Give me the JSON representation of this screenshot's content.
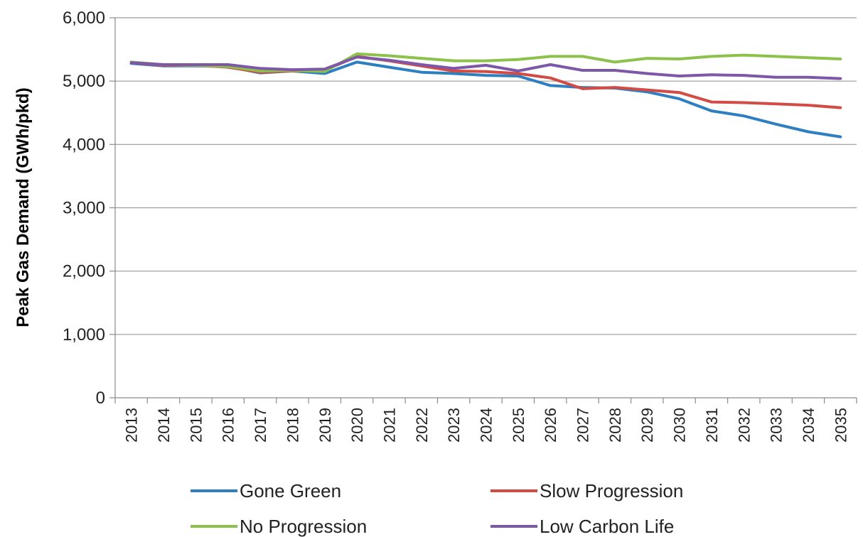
{
  "chart_data": {
    "type": "line",
    "title": "",
    "xlabel": "",
    "ylabel": "Peak Gas Demand (GWh/pkd)",
    "ylim": [
      0,
      6000
    ],
    "yticks": [
      0,
      1000,
      2000,
      3000,
      4000,
      5000,
      6000
    ],
    "ytick_labels": [
      "0",
      "1,000",
      "2,000",
      "3,000",
      "4,000",
      "5,000",
      "6,000"
    ],
    "grid": "horizontal",
    "legend_position": "bottom",
    "categories": [
      "2013",
      "2014",
      "2015",
      "2016",
      "2017",
      "2018",
      "2019",
      "2020",
      "2021",
      "2022",
      "2023",
      "2024",
      "2025",
      "2026",
      "2027",
      "2028",
      "2029",
      "2030",
      "2031",
      "2032",
      "2033",
      "2034",
      "2035"
    ],
    "series": [
      {
        "name": "Gone Green",
        "color": "#2e7fc1",
        "values": [
          5280,
          5240,
          5240,
          5230,
          5130,
          5160,
          5120,
          5300,
          5220,
          5140,
          5120,
          5090,
          5080,
          4930,
          4900,
          4890,
          4830,
          4720,
          4530,
          4450,
          4320,
          4200,
          4120
        ]
      },
      {
        "name": "Slow Progression",
        "color": "#d24b45",
        "values": [
          5290,
          5250,
          5250,
          5220,
          5140,
          5160,
          5170,
          5390,
          5320,
          5240,
          5160,
          5150,
          5120,
          5050,
          4880,
          4900,
          4860,
          4820,
          4670,
          4660,
          4640,
          4620,
          4580
        ]
      },
      {
        "name": "No Progression",
        "color": "#8cc24b",
        "values": [
          5300,
          5260,
          5250,
          5230,
          5160,
          5170,
          5150,
          5430,
          5400,
          5360,
          5320,
          5320,
          5340,
          5390,
          5390,
          5300,
          5360,
          5350,
          5390,
          5410,
          5390,
          5370,
          5350
        ]
      },
      {
        "name": "Low Carbon Life",
        "color": "#7e57a8",
        "values": [
          5290,
          5260,
          5260,
          5260,
          5200,
          5180,
          5190,
          5380,
          5330,
          5260,
          5200,
          5250,
          5160,
          5260,
          5170,
          5170,
          5120,
          5080,
          5100,
          5090,
          5060,
          5060,
          5040
        ]
      }
    ]
  }
}
